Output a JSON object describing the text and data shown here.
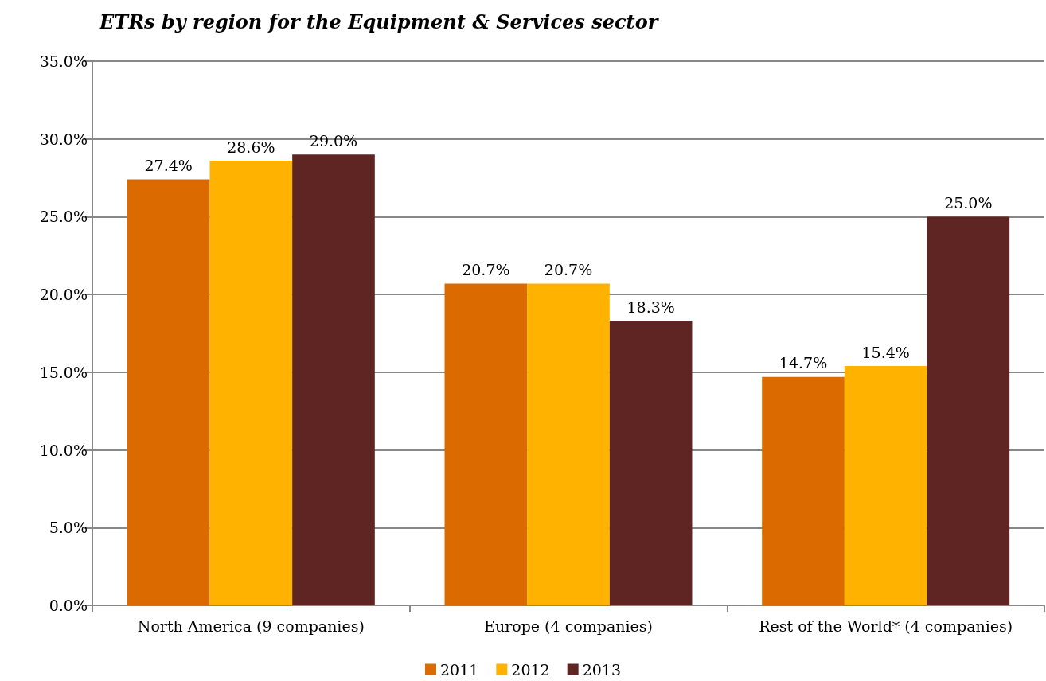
{
  "chart_data": {
    "type": "bar",
    "title": "ETRs by region for the Equipment & Services sector",
    "categories": [
      "North America (9 companies)",
      "Europe (4 companies)",
      "Rest of the World* (4 companies)"
    ],
    "series": [
      {
        "name": "2011",
        "color": "#db6a00",
        "values": [
          27.4,
          20.7,
          14.7
        ],
        "value_labels": [
          "27.4%",
          "20.7%",
          "14.7%"
        ]
      },
      {
        "name": "2012",
        "color": "#ffb300",
        "values": [
          28.6,
          20.7,
          15.4
        ],
        "value_labels": [
          "28.6%",
          "20.7%",
          "15.4%"
        ]
      },
      {
        "name": "2013",
        "color": "#5e2522",
        "values": [
          29.0,
          18.3,
          25.0
        ],
        "value_labels": [
          "29.0%",
          "18.3%",
          "25.0%"
        ]
      }
    ],
    "ylim": [
      0,
      35
    ],
    "yticks": [
      {
        "value": 0,
        "label": "0.0%"
      },
      {
        "value": 5,
        "label": "5.0%"
      },
      {
        "value": 10,
        "label": "10.0%"
      },
      {
        "value": 15,
        "label": "15.0%"
      },
      {
        "value": 20,
        "label": "20.0%"
      },
      {
        "value": 25,
        "label": "25.0%"
      },
      {
        "value": 30,
        "label": "30.0%"
      },
      {
        "value": 35,
        "label": "35.0%"
      }
    ],
    "grid": "y",
    "legend": "bottom"
  }
}
